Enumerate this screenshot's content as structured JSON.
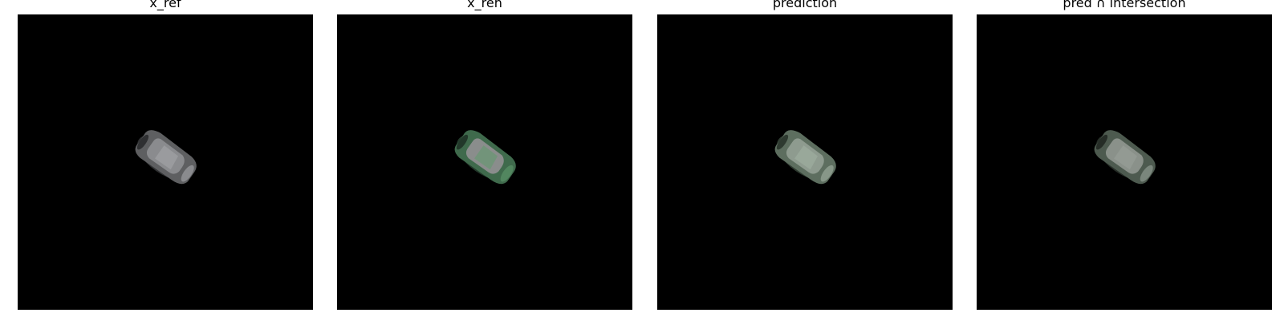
{
  "figure": {
    "panels": [
      {
        "title": "x_ref",
        "car_body": "#5e5f61",
        "car_glass": "#8a8b8e",
        "car_highlight": "#a8a9ab",
        "car_shadow": "#2f3032"
      },
      {
        "title": "x_ren",
        "car_body": "#3f6a4c",
        "car_glass": "#8a8d8c",
        "car_highlight": "#5f9a6c",
        "car_shadow": "#22382a"
      },
      {
        "title": "prediction",
        "car_body": "#5d6e5f",
        "car_glass": "#8e9b8f",
        "car_highlight": "#a3b3a4",
        "car_shadow": "#2e3a30"
      },
      {
        "title": "pred ∩ intersection",
        "car_body": "#4d5a4f",
        "car_glass": "#8a918a",
        "car_highlight": "#9aa39b",
        "car_shadow": "#262d27"
      }
    ]
  }
}
